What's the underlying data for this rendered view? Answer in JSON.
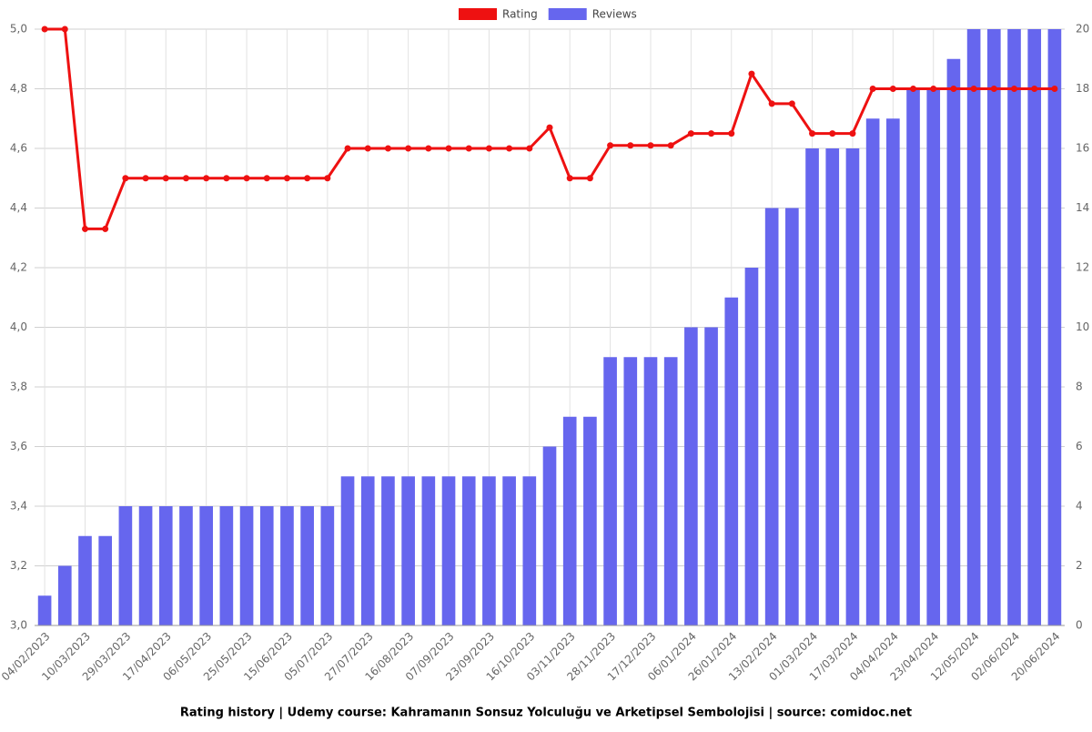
{
  "chart_data": {
    "type": "bar",
    "title": "Rating history | Udemy course: Kahramanın Sonsuz Yolculuğu ve Arketipsel Sembolojisi | source: comidoc.net",
    "categories": [
      "04/02/2023",
      null,
      "10/03/2023",
      null,
      "29/03/2023",
      null,
      "17/04/2023",
      null,
      "06/05/2023",
      null,
      "25/05/2023",
      null,
      "15/06/2023",
      null,
      "05/07/2023",
      null,
      "27/07/2023",
      null,
      "16/08/2023",
      null,
      "07/09/2023",
      null,
      "23/09/2023",
      null,
      "16/10/2023",
      null,
      "03/11/2023",
      null,
      "28/11/2023",
      null,
      "17/12/2023",
      null,
      "06/01/2024",
      null,
      "26/01/2024",
      null,
      "13/02/2024",
      null,
      "01/03/2024",
      null,
      "17/03/2024",
      null,
      "04/04/2024",
      null,
      "23/04/2024",
      null,
      "12/05/2024",
      null,
      "02/06/2024",
      null,
      "20/06/2024"
    ],
    "series": [
      {
        "name": "Rating",
        "type": "line",
        "color": "#ee1111",
        "values": [
          5.0,
          5.0,
          4.33,
          4.33,
          4.5,
          4.5,
          4.5,
          4.5,
          4.5,
          4.5,
          4.5,
          4.5,
          4.5,
          4.5,
          4.5,
          4.6,
          4.6,
          4.6,
          4.6,
          4.6,
          4.6,
          4.6,
          4.6,
          4.6,
          4.6,
          4.67,
          4.5,
          4.5,
          4.61,
          4.61,
          4.61,
          4.61,
          4.65,
          4.65,
          4.65,
          4.85,
          4.75,
          4.75,
          4.65,
          4.65,
          4.65,
          4.8,
          4.8,
          4.8,
          4.8,
          4.8,
          4.8,
          4.8,
          4.8,
          4.8,
          4.8
        ]
      },
      {
        "name": "Reviews",
        "type": "bar",
        "axis": "y2",
        "color": "#6666ee",
        "values": [
          1,
          2,
          3,
          3,
          4,
          4,
          4,
          4,
          4,
          4,
          4,
          4,
          4,
          4,
          4,
          5,
          5,
          5,
          5,
          5,
          5,
          5,
          5,
          5,
          5,
          6,
          7,
          7,
          9,
          9,
          9,
          9,
          10,
          10,
          11,
          12,
          14,
          14,
          16,
          16,
          16,
          17,
          17,
          18,
          18,
          19,
          20,
          20,
          20,
          20,
          20
        ]
      }
    ],
    "ylim": [
      3.0,
      5.0
    ],
    "yticks": [
      {
        "value": 3.0,
        "label": "3,0"
      },
      {
        "value": 3.2,
        "label": "3,2"
      },
      {
        "value": 3.4,
        "label": "3,4"
      },
      {
        "value": 3.6,
        "label": "3,6"
      },
      {
        "value": 3.8,
        "label": "3,8"
      },
      {
        "value": 4.0,
        "label": "4,0"
      },
      {
        "value": 4.2,
        "label": "4,2"
      },
      {
        "value": 4.4,
        "label": "4,4"
      },
      {
        "value": 4.6,
        "label": "4,6"
      },
      {
        "value": 4.8,
        "label": "4,8"
      },
      {
        "value": 5.0,
        "label": "5,0"
      }
    ],
    "y2lim": [
      0,
      20
    ],
    "y2ticks": [
      0,
      2,
      4,
      6,
      8,
      10,
      12,
      14,
      16,
      18,
      20
    ],
    "grid": true,
    "legend": "top"
  }
}
